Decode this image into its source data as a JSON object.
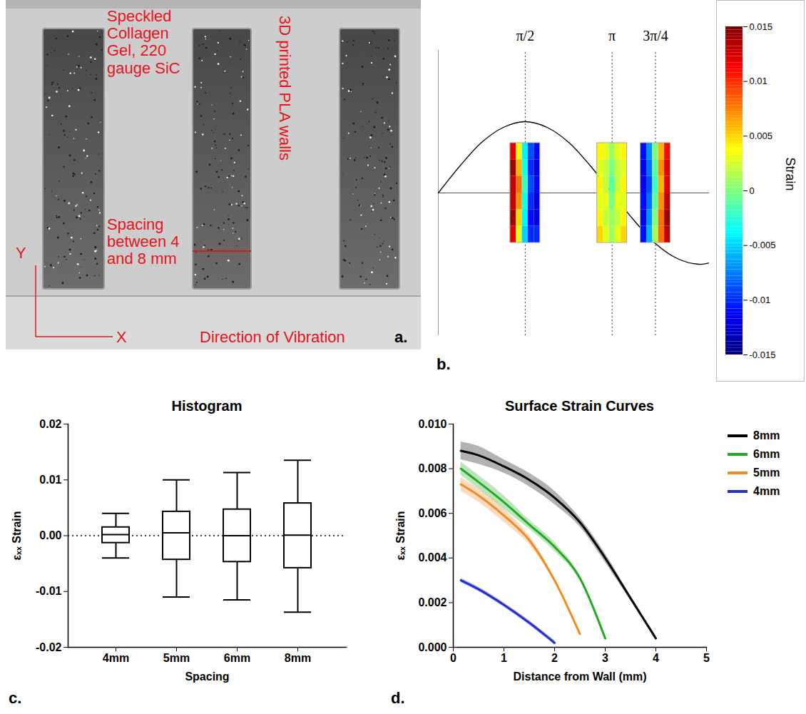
{
  "chart_data": [
    {
      "type": "image",
      "panel": "a.",
      "labels": {
        "material": "Speckled Collagen Gel, 220 gauge SiC",
        "walls": "3D printed PLA walls",
        "spacing": "Spacing between 4 and 8 mm",
        "y_axis": "Y",
        "x_axis": "X",
        "vibration": "Direction of Vibration"
      }
    },
    {
      "type": "line",
      "panel": "b.",
      "x": [
        0,
        0.393,
        0.785,
        1.178,
        1.571,
        1.963,
        2.356,
        2.749,
        3.142,
        3.534,
        3.927,
        4.32,
        4.712,
        4.9
      ],
      "values": [
        0,
        0.38,
        0.71,
        0.92,
        1,
        0.92,
        0.71,
        0.38,
        0,
        -0.38,
        -0.71,
        -0.92,
        -1,
        -0.98
      ],
      "color": "#000000",
      "xlim": [
        0,
        4.9
      ],
      "ylim": [
        -2,
        2
      ],
      "tick_labels": false,
      "reference_lines": [
        0
      ],
      "snapshots": [
        {
          "label": "π/2",
          "x": 1.571,
          "cells": [
            [
              0.012,
              0.004,
              -0.004,
              -0.009,
              -0.011
            ],
            [
              0.014,
              0.006,
              -0.003,
              -0.01,
              -0.012
            ],
            [
              0.013,
              0.008,
              -0.002,
              -0.009,
              -0.011
            ],
            [
              0.013,
              0.007,
              -0.003,
              -0.01,
              -0.012
            ],
            [
              0.014,
              0.005,
              -0.004,
              -0.011,
              -0.012
            ],
            [
              0.012,
              0.003,
              -0.005,
              -0.01,
              -0.01
            ]
          ]
        },
        {
          "label": "π",
          "x": 3.142,
          "cells": [
            [
              0.004,
              0.003,
              0.001,
              0.003,
              0.004
            ],
            [
              0.003,
              0.002,
              0.0,
              0.002,
              0.003
            ],
            [
              0.004,
              0.002,
              -0.001,
              0.002,
              0.004
            ],
            [
              0.003,
              0.003,
              0.0,
              0.003,
              0.003
            ],
            [
              0.004,
              0.002,
              0.001,
              0.002,
              0.004
            ],
            [
              0.005,
              0.003,
              0.001,
              0.003,
              0.005
            ]
          ]
        },
        {
          "label": "3π/4",
          "x": 3.927,
          "cells": [
            [
              -0.011,
              -0.007,
              0.0,
              0.006,
              0.011
            ],
            [
              -0.012,
              -0.008,
              -0.001,
              0.007,
              0.012
            ],
            [
              -0.012,
              -0.009,
              -0.002,
              0.006,
              0.012
            ],
            [
              -0.011,
              -0.008,
              -0.001,
              0.007,
              0.013
            ],
            [
              -0.012,
              -0.007,
              0.0,
              0.008,
              0.014
            ],
            [
              -0.011,
              -0.006,
              0.001,
              0.008,
              0.013
            ]
          ]
        }
      ],
      "colorbar": {
        "label": "Strain",
        "range": [
          -0.015,
          0.015
        ],
        "ticks": [
          0.015,
          0.01,
          0.005,
          0,
          -0.005,
          -0.01,
          -0.015
        ]
      }
    },
    {
      "type": "box",
      "panel": "c.",
      "title": "Histogram",
      "x_label": "Spacing",
      "y_label": "εₓₓ Strain",
      "categories": [
        "4mm",
        "5mm",
        "6mm",
        "8mm"
      ],
      "min": [
        -0.004,
        -0.011,
        -0.0115,
        -0.0137
      ],
      "q1": [
        -0.0013,
        -0.0043,
        -0.0047,
        -0.0058
      ],
      "median": [
        0.0002,
        0.0005,
        0,
        0.0001
      ],
      "q3": [
        0.0015,
        0.0043,
        0.0047,
        0.0058
      ],
      "max": [
        0.004,
        0.01,
        0.0113,
        0.0135
      ],
      "ylim": [
        -0.02,
        0.02
      ],
      "yticks": [
        -0.02,
        -0.01,
        {
          "value": 0,
          "label": "0.00"
        },
        0.01,
        0.02
      ],
      "reference_lines": [
        0
      ],
      "color": "#000000"
    },
    {
      "type": "line",
      "panel": "d.",
      "title": "Surface Strain Curves",
      "x_label": "Distance from Wall (mm)",
      "y_label": "εₓₓ Strain",
      "xlim": [
        0,
        5
      ],
      "xticks": [
        0,
        1,
        2,
        3,
        4,
        5
      ],
      "ylim": [
        0,
        0.01
      ],
      "yticks": [
        {
          "value": 0,
          "label": "0.000"
        },
        0.002,
        0.004,
        0.006,
        0.008,
        {
          "value": 0.01,
          "label": "0.010"
        }
      ],
      "legend": "right",
      "series": [
        {
          "name": "8mm",
          "color": "#000000",
          "x": [
            0.15,
            0.5,
            1,
            1.5,
            2,
            2.5,
            3,
            3.5,
            4
          ],
          "values": [
            0.0088,
            0.0086,
            0.0081,
            0.0075,
            0.0067,
            0.0056,
            0.004,
            0.0022,
            0.0004
          ],
          "error": [
            0.0004,
            0.0004,
            0.0003,
            0.0003,
            0.0003,
            0.0002,
            0.0002,
            0.0001,
            0.0001
          ]
        },
        {
          "name": "6mm",
          "color": "#22aa22",
          "x": [
            0.15,
            0.5,
            1,
            1.5,
            2,
            2.5,
            3
          ],
          "values": [
            0.008,
            0.0074,
            0.0065,
            0.0055,
            0.0045,
            0.0031,
            0.0004
          ],
          "error": [
            0.0003,
            0.0003,
            0.0003,
            0.0002,
            0.0002,
            0.0001,
            0.0001
          ]
        },
        {
          "name": "5mm",
          "color": "#f08a24",
          "x": [
            0.15,
            0.5,
            1,
            1.5,
            2,
            2.5
          ],
          "values": [
            0.0073,
            0.0068,
            0.0059,
            0.0048,
            0.003,
            0.0006
          ],
          "error": [
            0.0003,
            0.0003,
            0.0003,
            0.0002,
            0.0001,
            0.0001
          ]
        },
        {
          "name": "4mm",
          "color": "#1f2fd0",
          "x": [
            0.15,
            0.5,
            1,
            1.5,
            2
          ],
          "values": [
            0.003,
            0.0026,
            0.0019,
            0.0011,
            0.0002
          ],
          "error": [
            0.0001,
            0.0001,
            0.0001,
            0.0001,
            0.0001
          ]
        }
      ]
    }
  ]
}
